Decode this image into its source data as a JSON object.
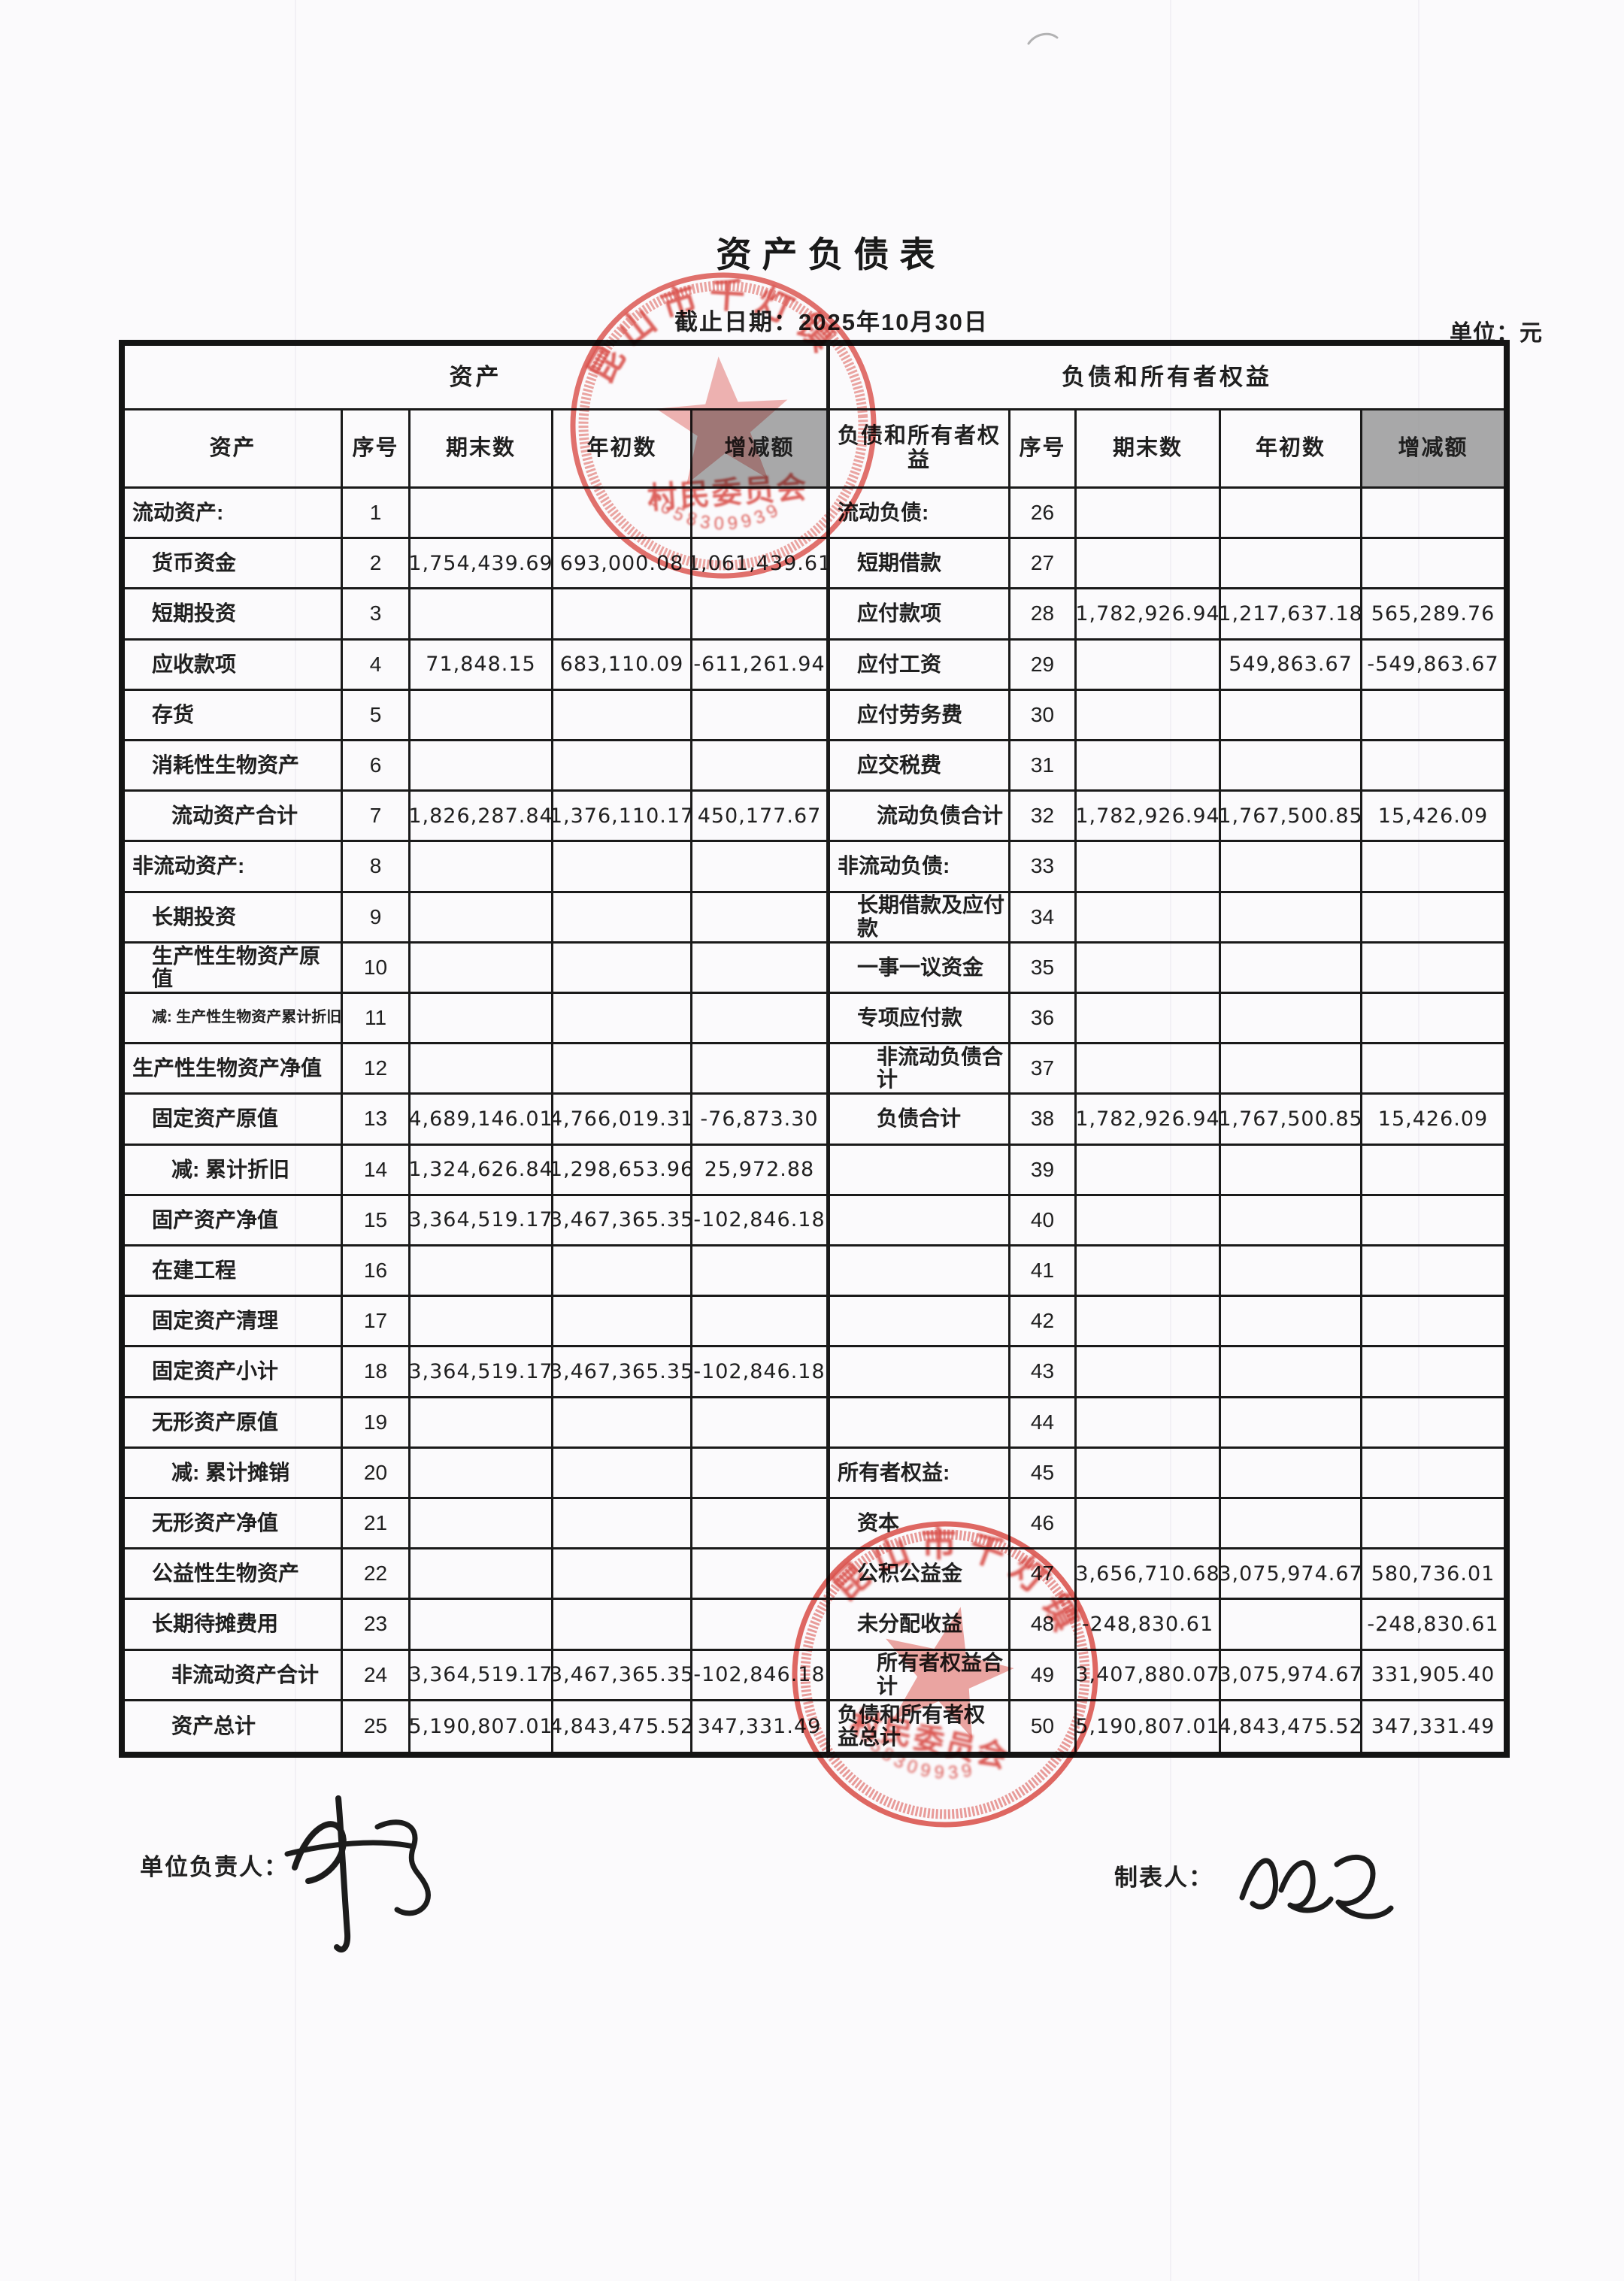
{
  "document": {
    "title": "资产负债表",
    "date_line": "截止日期：2025年10月30日",
    "unit_line": "单位：元"
  },
  "table": {
    "left_section_title": "资产",
    "right_section_title": "负债和所有者权益",
    "columns": [
      "资产",
      "序号",
      "期末数",
      "年初数",
      "增减额"
    ],
    "right_label_header": "负债和所有者权益",
    "left_rows": [
      {
        "label": "流动资产:",
        "no": "1",
        "end": "",
        "begin": "",
        "change": "",
        "indent": 0
      },
      {
        "label": "货币资金",
        "no": "2",
        "end": "1,754,439.69",
        "begin": "693,000.08",
        "change": "1,061,439.61",
        "indent": 1
      },
      {
        "label": "短期投资",
        "no": "3",
        "end": "",
        "begin": "",
        "change": "",
        "indent": 1
      },
      {
        "label": "应收款项",
        "no": "4",
        "end": "71,848.15",
        "begin": "683,110.09",
        "change": "-611,261.94",
        "indent": 1
      },
      {
        "label": "存货",
        "no": "5",
        "end": "",
        "begin": "",
        "change": "",
        "indent": 1
      },
      {
        "label": "消耗性生物资产",
        "no": "6",
        "end": "",
        "begin": "",
        "change": "",
        "indent": 1
      },
      {
        "label": "流动资产合计",
        "no": "7",
        "end": "1,826,287.84",
        "begin": "1,376,110.17",
        "change": "450,177.67",
        "indent": 2
      },
      {
        "label": "非流动资产:",
        "no": "8",
        "end": "",
        "begin": "",
        "change": "",
        "indent": 0
      },
      {
        "label": "长期投资",
        "no": "9",
        "end": "",
        "begin": "",
        "change": "",
        "indent": 1
      },
      {
        "label": "生产性生物资产原值",
        "no": "10",
        "end": "",
        "begin": "",
        "change": "",
        "indent": 1
      },
      {
        "label": "减: 生产性生物资产累计折旧",
        "no": "11",
        "end": "",
        "begin": "",
        "change": "",
        "indent": 1,
        "small": true
      },
      {
        "label": "生产性生物资产净值",
        "no": "12",
        "end": "",
        "begin": "",
        "change": "",
        "indent": 0
      },
      {
        "label": "固定资产原值",
        "no": "13",
        "end": "4,689,146.01",
        "begin": "4,766,019.31",
        "change": "-76,873.30",
        "indent": 1
      },
      {
        "label": "减: 累计折旧",
        "no": "14",
        "end": "1,324,626.84",
        "begin": "1,298,653.96",
        "change": "25,972.88",
        "indent": 2
      },
      {
        "label": "固产资产净值",
        "no": "15",
        "end": "3,364,519.17",
        "begin": "3,467,365.35",
        "change": "-102,846.18",
        "indent": 1
      },
      {
        "label": "在建工程",
        "no": "16",
        "end": "",
        "begin": "",
        "change": "",
        "indent": 1
      },
      {
        "label": "固定资产清理",
        "no": "17",
        "end": "",
        "begin": "",
        "change": "",
        "indent": 1
      },
      {
        "label": "固定资产小计",
        "no": "18",
        "end": "3,364,519.17",
        "begin": "3,467,365.35",
        "change": "-102,846.18",
        "indent": 1
      },
      {
        "label": "无形资产原值",
        "no": "19",
        "end": "",
        "begin": "",
        "change": "",
        "indent": 1
      },
      {
        "label": "减: 累计摊销",
        "no": "20",
        "end": "",
        "begin": "",
        "change": "",
        "indent": 2
      },
      {
        "label": "无形资产净值",
        "no": "21",
        "end": "",
        "begin": "",
        "change": "",
        "indent": 1
      },
      {
        "label": "公益性生物资产",
        "no": "22",
        "end": "",
        "begin": "",
        "change": "",
        "indent": 1
      },
      {
        "label": "长期待摊费用",
        "no": "23",
        "end": "",
        "begin": "",
        "change": "",
        "indent": 1
      },
      {
        "label": "非流动资产合计",
        "no": "24",
        "end": "3,364,519.17",
        "begin": "3,467,365.35",
        "change": "-102,846.18",
        "indent": 2
      },
      {
        "label": "资产总计",
        "no": "25",
        "end": "5,190,807.01",
        "begin": "4,843,475.52",
        "change": "347,331.49",
        "indent": 2
      }
    ],
    "right_rows": [
      {
        "label": "流动负债:",
        "no": "26",
        "end": "",
        "begin": "",
        "change": "",
        "indent": 0
      },
      {
        "label": "短期借款",
        "no": "27",
        "end": "",
        "begin": "",
        "change": "",
        "indent": 1
      },
      {
        "label": "应付款项",
        "no": "28",
        "end": "1,782,926.94",
        "begin": "1,217,637.18",
        "change": "565,289.76",
        "indent": 1
      },
      {
        "label": "应付工资",
        "no": "29",
        "end": "",
        "begin": "549,863.67",
        "change": "-549,863.67",
        "indent": 1
      },
      {
        "label": "应付劳务费",
        "no": "30",
        "end": "",
        "begin": "",
        "change": "",
        "indent": 1
      },
      {
        "label": "应交税费",
        "no": "31",
        "end": "",
        "begin": "",
        "change": "",
        "indent": 1
      },
      {
        "label": "流动负债合计",
        "no": "32",
        "end": "1,782,926.94",
        "begin": "1,767,500.85",
        "change": "15,426.09",
        "indent": 2
      },
      {
        "label": "非流动负债:",
        "no": "33",
        "end": "",
        "begin": "",
        "change": "",
        "indent": 0
      },
      {
        "label": "长期借款及应付款",
        "no": "34",
        "end": "",
        "begin": "",
        "change": "",
        "indent": 1
      },
      {
        "label": "一事一议资金",
        "no": "35",
        "end": "",
        "begin": "",
        "change": "",
        "indent": 1
      },
      {
        "label": "专项应付款",
        "no": "36",
        "end": "",
        "begin": "",
        "change": "",
        "indent": 1
      },
      {
        "label": "非流动负债合计",
        "no": "37",
        "end": "",
        "begin": "",
        "change": "",
        "indent": 2
      },
      {
        "label": "负债合计",
        "no": "38",
        "end": "1,782,926.94",
        "begin": "1,767,500.85",
        "change": "15,426.09",
        "indent": 2
      },
      {
        "label": "",
        "no": "39",
        "end": "",
        "begin": "",
        "change": "",
        "indent": 0
      },
      {
        "label": "",
        "no": "40",
        "end": "",
        "begin": "",
        "change": "",
        "indent": 0
      },
      {
        "label": "",
        "no": "41",
        "end": "",
        "begin": "",
        "change": "",
        "indent": 0
      },
      {
        "label": "",
        "no": "42",
        "end": "",
        "begin": "",
        "change": "",
        "indent": 0
      },
      {
        "label": "",
        "no": "43",
        "end": "",
        "begin": "",
        "change": "",
        "indent": 0
      },
      {
        "label": "",
        "no": "44",
        "end": "",
        "begin": "",
        "change": "",
        "indent": 0
      },
      {
        "label": "所有者权益:",
        "no": "45",
        "end": "",
        "begin": "",
        "change": "",
        "indent": 0
      },
      {
        "label": "资本",
        "no": "46",
        "end": "",
        "begin": "",
        "change": "",
        "indent": 1
      },
      {
        "label": "公积公益金",
        "no": "47",
        "end": "3,656,710.68",
        "begin": "3,075,974.67",
        "change": "580,736.01",
        "indent": 1
      },
      {
        "label": "未分配收益",
        "no": "48",
        "end": "-248,830.61",
        "begin": "",
        "change": "-248,830.61",
        "indent": 1
      },
      {
        "label": "所有者权益合计",
        "no": "49",
        "end": "3,407,880.07",
        "begin": "3,075,974.67",
        "change": "331,905.40",
        "indent": 2
      },
      {
        "label": "负债和所有者权益总计",
        "no": "50",
        "end": "5,190,807.01",
        "begin": "4,843,475.52",
        "change": "347,331.49",
        "indent": 0
      }
    ]
  },
  "footer": {
    "responsible_label": "单位负责人：",
    "preparer_label": "制表人："
  },
  "stamp": {
    "arc_text": "昆山市千灯镇",
    "band_text": "村民委员会",
    "code": "2058309939",
    "color": "#dd4f48"
  }
}
